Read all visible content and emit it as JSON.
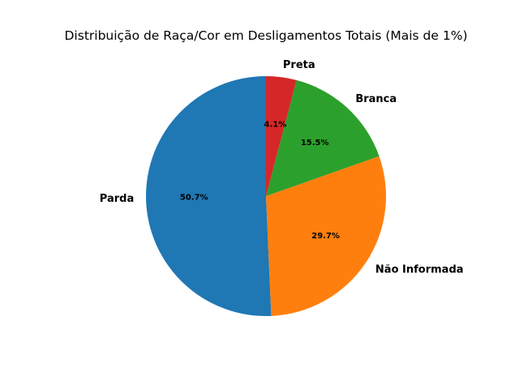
{
  "chart_data": {
    "type": "pie",
    "title": "Distribuição de Raça/Cor em Desligamentos Totais (Mais de 1%)",
    "start_angle_deg": 90,
    "direction": "counterclockwise",
    "legend": false,
    "slices": [
      {
        "label": "Parda",
        "value": 50.7,
        "pct_label": "50.7%",
        "color": "#1f77b4"
      },
      {
        "label": "Não Informada",
        "value": 29.7,
        "pct_label": "29.7%",
        "color": "#ff7f0e"
      },
      {
        "label": "Branca",
        "value": 15.5,
        "pct_label": "15.5%",
        "color": "#2ca02c"
      },
      {
        "label": "Preta",
        "value": 4.1,
        "pct_label": "4.1%",
        "color": "#d62728"
      }
    ]
  }
}
